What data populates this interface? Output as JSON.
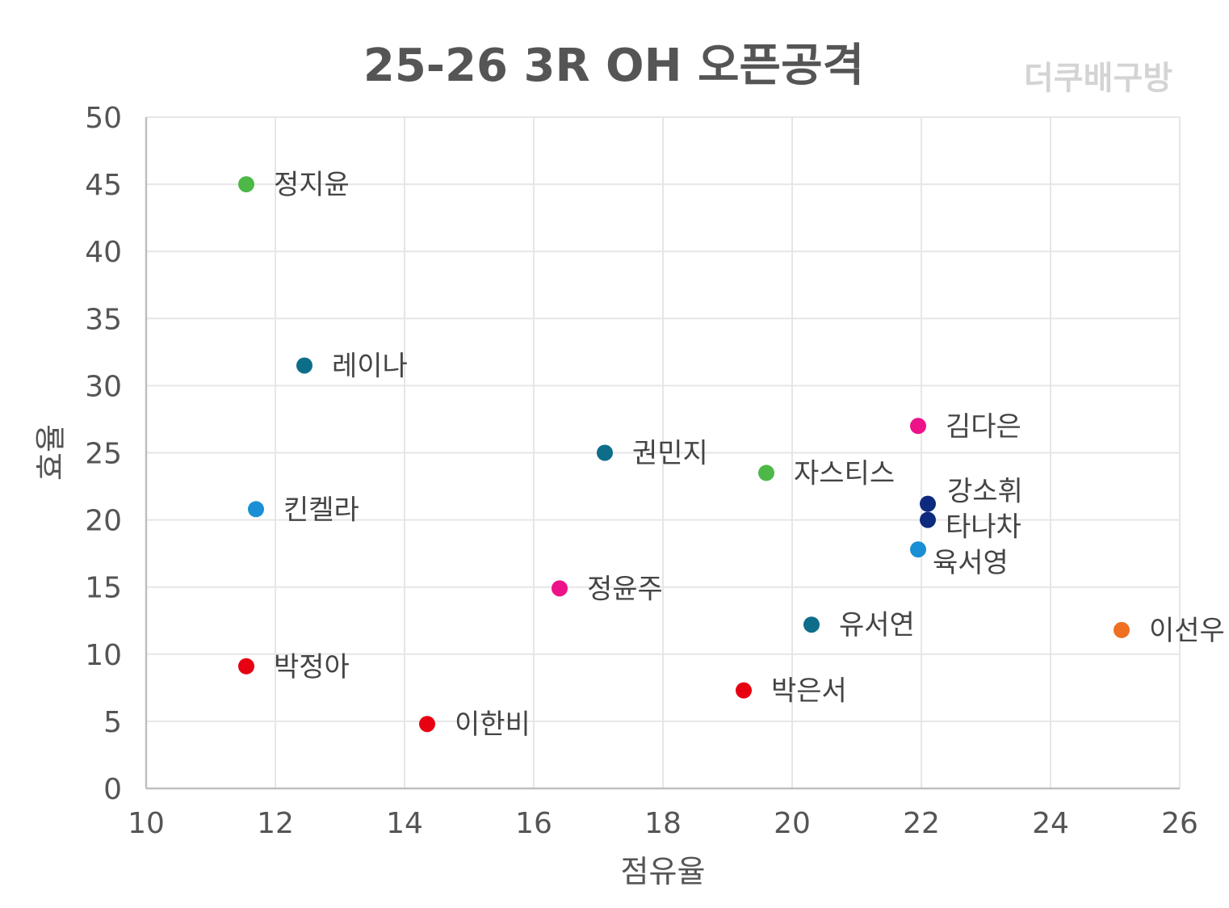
{
  "chart_data": {
    "type": "scatter",
    "title": "25-26 3R OH 오픈공격",
    "watermark": "더쿠배구방",
    "xlabel": "점유율",
    "ylabel": "효율",
    "xlim": [
      10,
      26
    ],
    "ylim": [
      0,
      50
    ],
    "xticks": [
      10,
      12,
      14,
      16,
      18,
      20,
      22,
      24,
      26
    ],
    "yticks": [
      0,
      5,
      10,
      15,
      20,
      25,
      30,
      35,
      40,
      45,
      50
    ],
    "grid": true,
    "points": [
      {
        "label": "정지윤",
        "x": 11.55,
        "y": 45.0,
        "color": "#4db848"
      },
      {
        "label": "레이나",
        "x": 12.45,
        "y": 31.5,
        "color": "#0e6e8a"
      },
      {
        "label": "킨켈라",
        "x": 11.7,
        "y": 20.8,
        "color": "#1a8fd6"
      },
      {
        "label": "박정아",
        "x": 11.55,
        "y": 9.1,
        "color": "#e60012"
      },
      {
        "label": "이한비",
        "x": 14.35,
        "y": 4.8,
        "color": "#e60012"
      },
      {
        "label": "정윤주",
        "x": 16.4,
        "y": 14.9,
        "color": "#ee1289"
      },
      {
        "label": "권민지",
        "x": 17.1,
        "y": 25.0,
        "color": "#0e6e8a"
      },
      {
        "label": "박은서",
        "x": 19.25,
        "y": 7.3,
        "color": "#e60012"
      },
      {
        "label": "자스티스",
        "x": 19.6,
        "y": 23.5,
        "color": "#4db848"
      },
      {
        "label": "유서연",
        "x": 20.3,
        "y": 12.2,
        "color": "#0e6e8a"
      },
      {
        "label": "김다은",
        "x": 21.95,
        "y": 27.0,
        "color": "#ee1289"
      },
      {
        "label": "강소휘",
        "x": 22.1,
        "y": 21.2,
        "color": "#0d2a7f"
      },
      {
        "label": "타나차",
        "x": 22.1,
        "y": 20.0,
        "color": "#0d2a7f"
      },
      {
        "label": "육서영",
        "x": 21.95,
        "y": 17.8,
        "color": "#1a8fd6"
      },
      {
        "label": "이선우",
        "x": 25.1,
        "y": 11.8,
        "color": "#ef7022"
      }
    ]
  }
}
